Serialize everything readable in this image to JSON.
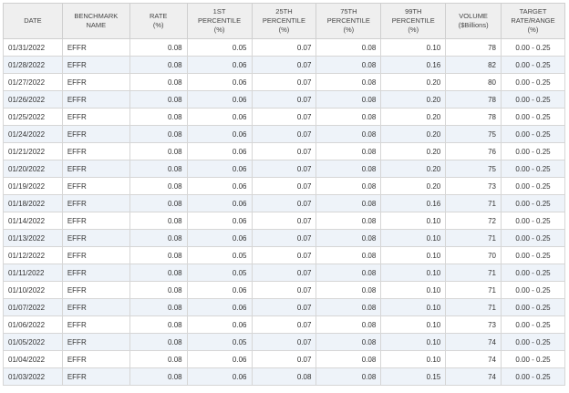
{
  "table": {
    "headers": [
      "DATE",
      "BENCHMARK\nNAME",
      "RATE\n(%)",
      "1ST\nPERCENTILE\n(%)",
      "25TH\nPERCENTILE\n(%)",
      "75TH\nPERCENTILE\n(%)",
      "99TH\nPERCENTILE\n(%)",
      "VOLUME\n($Billions)",
      "TARGET\nRATE/RANGE\n(%)"
    ],
    "rows": [
      [
        "01/31/2022",
        "EFFR",
        "0.08",
        "0.05",
        "0.07",
        "0.08",
        "0.10",
        "78",
        "0.00 - 0.25"
      ],
      [
        "01/28/2022",
        "EFFR",
        "0.08",
        "0.06",
        "0.07",
        "0.08",
        "0.16",
        "82",
        "0.00 - 0.25"
      ],
      [
        "01/27/2022",
        "EFFR",
        "0.08",
        "0.06",
        "0.07",
        "0.08",
        "0.20",
        "80",
        "0.00 - 0.25"
      ],
      [
        "01/26/2022",
        "EFFR",
        "0.08",
        "0.06",
        "0.07",
        "0.08",
        "0.20",
        "78",
        "0.00 - 0.25"
      ],
      [
        "01/25/2022",
        "EFFR",
        "0.08",
        "0.06",
        "0.07",
        "0.08",
        "0.20",
        "78",
        "0.00 - 0.25"
      ],
      [
        "01/24/2022",
        "EFFR",
        "0.08",
        "0.06",
        "0.07",
        "0.08",
        "0.20",
        "75",
        "0.00 - 0.25"
      ],
      [
        "01/21/2022",
        "EFFR",
        "0.08",
        "0.06",
        "0.07",
        "0.08",
        "0.20",
        "76",
        "0.00 - 0.25"
      ],
      [
        "01/20/2022",
        "EFFR",
        "0.08",
        "0.06",
        "0.07",
        "0.08",
        "0.20",
        "75",
        "0.00 - 0.25"
      ],
      [
        "01/19/2022",
        "EFFR",
        "0.08",
        "0.06",
        "0.07",
        "0.08",
        "0.20",
        "73",
        "0.00 - 0.25"
      ],
      [
        "01/18/2022",
        "EFFR",
        "0.08",
        "0.06",
        "0.07",
        "0.08",
        "0.16",
        "71",
        "0.00 - 0.25"
      ],
      [
        "01/14/2022",
        "EFFR",
        "0.08",
        "0.06",
        "0.07",
        "0.08",
        "0.10",
        "72",
        "0.00 - 0.25"
      ],
      [
        "01/13/2022",
        "EFFR",
        "0.08",
        "0.06",
        "0.07",
        "0.08",
        "0.10",
        "71",
        "0.00 - 0.25"
      ],
      [
        "01/12/2022",
        "EFFR",
        "0.08",
        "0.05",
        "0.07",
        "0.08",
        "0.10",
        "70",
        "0.00 - 0.25"
      ],
      [
        "01/11/2022",
        "EFFR",
        "0.08",
        "0.05",
        "0.07",
        "0.08",
        "0.10",
        "71",
        "0.00 - 0.25"
      ],
      [
        "01/10/2022",
        "EFFR",
        "0.08",
        "0.06",
        "0.07",
        "0.08",
        "0.10",
        "71",
        "0.00 - 0.25"
      ],
      [
        "01/07/2022",
        "EFFR",
        "0.08",
        "0.06",
        "0.07",
        "0.08",
        "0.10",
        "71",
        "0.00 - 0.25"
      ],
      [
        "01/06/2022",
        "EFFR",
        "0.08",
        "0.06",
        "0.07",
        "0.08",
        "0.10",
        "73",
        "0.00 - 0.25"
      ],
      [
        "01/05/2022",
        "EFFR",
        "0.08",
        "0.05",
        "0.07",
        "0.08",
        "0.10",
        "74",
        "0.00 - 0.25"
      ],
      [
        "01/04/2022",
        "EFFR",
        "0.08",
        "0.06",
        "0.07",
        "0.08",
        "0.10",
        "74",
        "0.00 - 0.25"
      ],
      [
        "01/03/2022",
        "EFFR",
        "0.08",
        "0.06",
        "0.08",
        "0.08",
        "0.15",
        "74",
        "0.00 - 0.25"
      ]
    ]
  },
  "colors": {
    "header_background": "#efefef",
    "alternate_row_background": "#eef3f9",
    "grid_line": "#d6d6d6"
  }
}
